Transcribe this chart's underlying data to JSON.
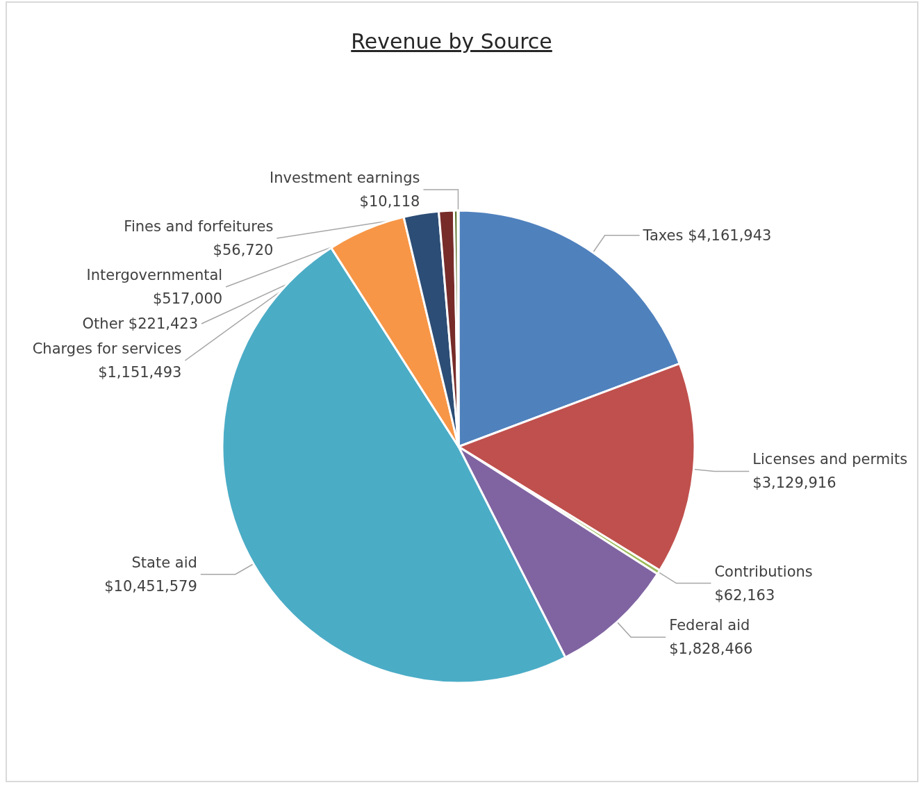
{
  "chart_data": {
    "type": "pie",
    "title": "Revenue by Source",
    "categories": [
      "Taxes",
      "Licenses and permits",
      "Contributions",
      "Federal aid",
      "State aid",
      "Charges for services",
      "Intergovernmental",
      "Other",
      "Fines and forfeitures",
      "Investment earnings"
    ],
    "values": [
      4161943,
      3129916,
      62163,
      1828466,
      10451579,
      1151493,
      517000,
      221423,
      56720,
      10118
    ],
    "value_labels": [
      "$4,161,943",
      "$3,129,916",
      "$62,163",
      "$1,828,466",
      "$10,451,579",
      "$1,151,493",
      "$517,000",
      "$221,423",
      "$56,720",
      "$10,118"
    ],
    "colors": [
      "#4f81bd",
      "#c0504d",
      "#9bbb59",
      "#8064a2",
      "#4bacc6",
      "#f79646",
      "#2c4d75",
      "#772c2a",
      "#5f7530",
      "#4d3b62"
    ],
    "legend": false
  }
}
